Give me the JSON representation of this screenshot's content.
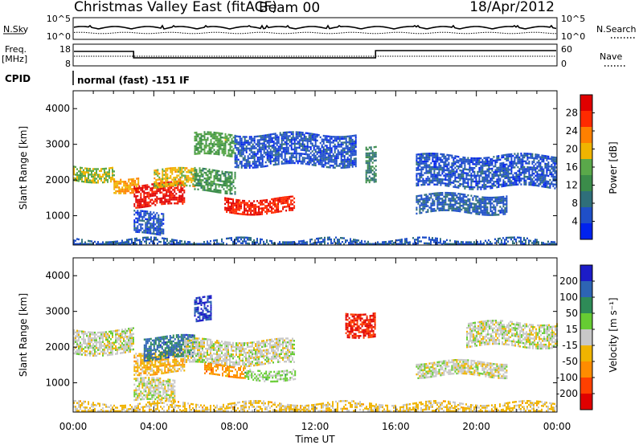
{
  "header": {
    "station": "Christmas Valley East (fitACF)",
    "beam": "Beam 00",
    "date": "18/Apr/2012"
  },
  "top_panel": {
    "nsky_label": "N.Sky",
    "nsky_ticks": [
      "10^5",
      "10^0"
    ],
    "nsearch_label": "N.Search",
    "nsearch_ticks": [
      "10^5",
      "10^0"
    ],
    "freq_label_1": "Freq.",
    "freq_label_2": "[MHz]",
    "freq_ticks": [
      "18",
      "8"
    ],
    "nave_label": "Nave",
    "nave_ticks": [
      "60",
      "0"
    ],
    "cpid_label": "CPID",
    "cpid_value": "normal (fast) -151 IF"
  },
  "colors": {
    "power_scale": [
      "#0022ee",
      "#1f4fc8",
      "#2f6f7a",
      "#3b8c4a",
      "#5aa84a",
      "#f0b400",
      "#ff8000",
      "#ff2a00",
      "#e00000"
    ],
    "velocity_scale": [
      "#1c1cc8",
      "#2d64b4",
      "#2e8b57",
      "#66cc33",
      "#c8c8c8",
      "#f0b400",
      "#ff8c00",
      "#ff4000",
      "#e00000"
    ]
  },
  "chart_data": [
    {
      "type": "heatmap",
      "panel": "power",
      "ylabel": "Slant Range [km]",
      "yticks": [
        1000,
        2000,
        3000,
        4000
      ],
      "ylim": [
        180,
        4500
      ],
      "xlim_hours": [
        0,
        24
      ],
      "colorbar": {
        "label": "Power [dB]",
        "ticks": [
          "28",
          "24",
          "20",
          "16",
          "12",
          "8",
          "4"
        ],
        "range": [
          0,
          30
        ]
      },
      "echo_bands": [
        {
          "t_start": 0.0,
          "t_end": 2.0,
          "r_start": 2000,
          "r_end": 2400,
          "value": 16
        },
        {
          "t_start": 2.0,
          "t_end": 3.2,
          "r_start": 1700,
          "r_end": 2100,
          "value": 20
        },
        {
          "t_start": 3.0,
          "t_end": 5.5,
          "r_start": 1300,
          "r_end": 1900,
          "value": 28
        },
        {
          "t_start": 4.0,
          "t_end": 6.0,
          "r_start": 1800,
          "r_end": 2300,
          "value": 18
        },
        {
          "t_start": 6.0,
          "t_end": 8.0,
          "r_start": 2700,
          "r_end": 3300,
          "value": 14
        },
        {
          "t_start": 6.0,
          "t_end": 8.0,
          "r_start": 1700,
          "r_end": 2300,
          "value": 12
        },
        {
          "t_start": 7.5,
          "t_end": 11.0,
          "r_start": 1100,
          "r_end": 1500,
          "value": 26
        },
        {
          "t_start": 8.0,
          "t_end": 14.0,
          "r_start": 2400,
          "r_end": 3300,
          "value": 5
        },
        {
          "t_start": 14.5,
          "t_end": 15.0,
          "r_start": 2000,
          "r_end": 3000,
          "value": 10
        },
        {
          "t_start": 17.0,
          "t_end": 21.5,
          "r_start": 1100,
          "r_end": 1600,
          "value": 6
        },
        {
          "t_start": 17.0,
          "t_end": 24.0,
          "r_start": 1800,
          "r_end": 2700,
          "value": 5
        },
        {
          "t_start": 3.0,
          "t_end": 4.5,
          "r_start": 500,
          "r_end": 1100,
          "value": 5
        },
        {
          "t_start": 0.0,
          "t_end": 24.0,
          "r_start": 180,
          "r_end": 350,
          "value": 6
        }
      ]
    },
    {
      "type": "heatmap",
      "panel": "velocity",
      "ylabel": "Slant Range [km]",
      "yticks": [
        1000,
        2000,
        3000,
        4000
      ],
      "ylim": [
        180,
        4500
      ],
      "xlim_hours": [
        0,
        24
      ],
      "xticks": [
        "00:00",
        "04:00",
        "08:00",
        "12:00",
        "16:00",
        "20:00",
        "00:00"
      ],
      "xlabel": "Time UT",
      "colorbar": {
        "label": "Velocity [m s⁻¹]",
        "ticks": [
          "200",
          "100",
          "50",
          "15",
          "-15",
          "-50",
          "-100",
          "-200"
        ],
        "range": [
          -250,
          250
        ]
      },
      "echo_bands": [
        {
          "t_start": 0.0,
          "t_end": 3.0,
          "r_start": 1800,
          "r_end": 2500,
          "value": 0
        },
        {
          "t_start": 3.0,
          "t_end": 5.5,
          "r_start": 1300,
          "r_end": 1900,
          "value": -60
        },
        {
          "t_start": 3.5,
          "t_end": 6.0,
          "r_start": 1700,
          "r_end": 2300,
          "value": 150
        },
        {
          "t_start": 6.0,
          "t_end": 6.8,
          "r_start": 2700,
          "r_end": 3400,
          "value": 200
        },
        {
          "t_start": 5.5,
          "t_end": 11.0,
          "r_start": 1500,
          "r_end": 2200,
          "value": 0
        },
        {
          "t_start": 6.5,
          "t_end": 8.5,
          "r_start": 1200,
          "r_end": 1500,
          "value": -100
        },
        {
          "t_start": 8.5,
          "t_end": 11.0,
          "r_start": 1100,
          "r_end": 1400,
          "value": 40
        },
        {
          "t_start": 13.5,
          "t_end": 15.0,
          "r_start": 2300,
          "r_end": 3000,
          "value": -200
        },
        {
          "t_start": 17.0,
          "t_end": 21.5,
          "r_start": 1200,
          "r_end": 1600,
          "value": 0
        },
        {
          "t_start": 19.5,
          "t_end": 24.0,
          "r_start": 2000,
          "r_end": 2700,
          "value": 0
        },
        {
          "t_start": 3.0,
          "t_end": 5.0,
          "r_start": 500,
          "r_end": 1100,
          "value": 0
        },
        {
          "t_start": 0.0,
          "t_end": 24.0,
          "r_start": 180,
          "r_end": 450,
          "value": -40
        }
      ]
    }
  ]
}
